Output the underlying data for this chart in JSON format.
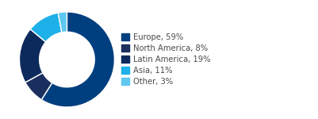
{
  "labels": [
    "Europe, 59%",
    "North America, 8%",
    "Latin America, 19%",
    "Asia, 11%",
    "Other, 3%"
  ],
  "values": [
    59,
    8,
    19,
    11,
    3
  ],
  "colors": [
    "#003f7f",
    "#1a2f5e",
    "#0d2a5c",
    "#1eb0e8",
    "#5ec8f0"
  ],
  "wedge_edge_color": "#ffffff",
  "background_color": "#ffffff",
  "donut_width": 0.42,
  "legend_fontsize": 7.2,
  "legend_text_color": "#4a4a4a",
  "start_angle": 90
}
